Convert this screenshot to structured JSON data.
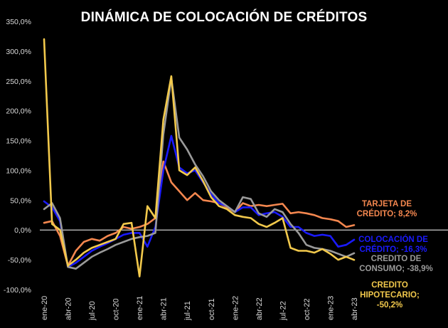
{
  "chart_data": {
    "type": "line",
    "title": "DINÁMICA DE COLOCACIÓN DE CRÉDITOS",
    "xlabel": "",
    "ylabel": "",
    "ylim": [
      -100,
      350
    ],
    "yticks": [
      "350,0%",
      "300,0%",
      "250,0%",
      "200,0%",
      "150,0%",
      "100,0%",
      "50,0%",
      "0,0%",
      "-50,0%",
      "-100,0%"
    ],
    "ytick_values": [
      350,
      300,
      250,
      200,
      150,
      100,
      50,
      0,
      -50,
      -100
    ],
    "x": [
      "ene-20",
      "feb-20",
      "mar-20",
      "abr-20",
      "may-20",
      "jun-20",
      "jul-20",
      "ago-20",
      "sep-20",
      "oct-20",
      "nov-20",
      "dic-20",
      "ene-21",
      "feb-21",
      "mar-21",
      "abr-21",
      "may-21",
      "jun-21",
      "jul-21",
      "ago-21",
      "sep-21",
      "oct-21",
      "nov-21",
      "dic-21",
      "ene-22",
      "feb-22",
      "mar-22",
      "abr-22",
      "may-22",
      "jun-22",
      "jul-22",
      "ago-22",
      "sep-22",
      "oct-22",
      "nov-22",
      "dic-22",
      "ene-23",
      "feb-23",
      "mar-23",
      "abr-23"
    ],
    "xtick_labels": [
      "ene-20",
      "abr-20",
      "jul-20",
      "oct-20",
      "ene-21",
      "abr-21",
      "jul-21",
      "oct-21",
      "ene-22",
      "abr-22",
      "jul-22",
      "oct-22",
      "ene-23",
      "abr-23"
    ],
    "xtick_indices": [
      0,
      3,
      6,
      9,
      12,
      15,
      18,
      21,
      24,
      27,
      30,
      33,
      36,
      39
    ],
    "grid": false,
    "legend": "end-labels-right",
    "series": [
      {
        "label_lines": [
          "TARJETA DE",
          "CRÉDITO; 8,2%"
        ],
        "color": "#f4874f",
        "values": [
          12,
          15,
          -10,
          -60,
          -35,
          -20,
          -15,
          -18,
          -10,
          -5,
          5,
          2,
          5,
          10,
          20,
          115,
          80,
          65,
          50,
          62,
          50,
          48,
          45,
          38,
          30,
          45,
          40,
          42,
          40,
          42,
          44,
          28,
          30,
          28,
          25,
          20,
          18,
          15,
          5,
          8.2
        ]
      },
      {
        "label_lines": [
          "COLOCACIÓN DE",
          "CRÉDITO; -16,3%"
        ],
        "color": "#1a1aff",
        "values": [
          48,
          38,
          15,
          -62,
          -55,
          -45,
          -35,
          -28,
          -22,
          -15,
          -8,
          -5,
          -5,
          -28,
          5,
          100,
          158,
          105,
          95,
          100,
          80,
          60,
          45,
          40,
          30,
          38,
          38,
          25,
          28,
          30,
          22,
          5,
          5,
          -5,
          -10,
          -8,
          -10,
          -28,
          -25,
          -16.3
        ]
      },
      {
        "label_lines": [
          "CREDITO DE",
          "CONSUMO; -38,9%"
        ],
        "color": "#9a9a9a",
        "values": [
          35,
          45,
          20,
          -62,
          -65,
          -55,
          -45,
          -38,
          -32,
          -25,
          -20,
          -15,
          -12,
          -10,
          -5,
          160,
          255,
          155,
          135,
          110,
          90,
          65,
          50,
          40,
          30,
          55,
          52,
          28,
          22,
          35,
          30,
          10,
          -5,
          -25,
          -30,
          -32,
          -35,
          -40,
          -45,
          -38.9
        ]
      },
      {
        "label_lines": [
          "CREDITO",
          "HIPOTECARIO;",
          "-50,2%"
        ],
        "color": "#f2c94c",
        "values": [
          320,
          10,
          0,
          -60,
          -50,
          -38,
          -30,
          -25,
          -20,
          -15,
          10,
          12,
          -78,
          40,
          20,
          185,
          258,
          100,
          92,
          105,
          82,
          55,
          40,
          35,
          25,
          22,
          20,
          10,
          5,
          12,
          20,
          -30,
          -35,
          -35,
          -38,
          -32,
          -40,
          -50,
          -45,
          -50.2
        ]
      }
    ]
  }
}
